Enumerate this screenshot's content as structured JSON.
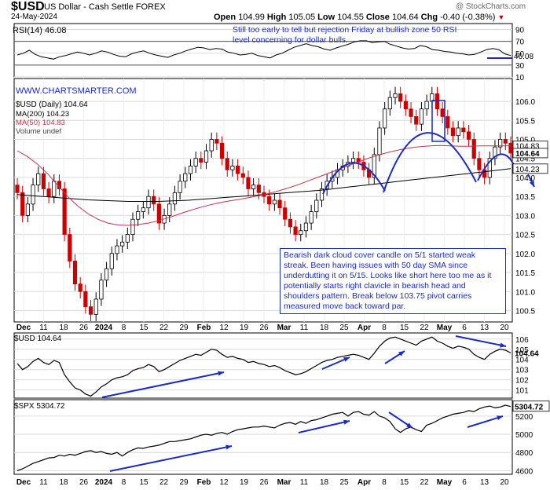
{
  "header": {
    "symbol": "$USD",
    "name": "US Dollar - Cash Settle FOREX",
    "date": "24-May-2024",
    "watermark": "@ StockCharts.com",
    "ohlc": {
      "open_label": "Open",
      "open": "104.99",
      "high_label": "High",
      "high": "105.05",
      "low_label": "Low",
      "low": "104.55",
      "close_label": "Close",
      "close": "104.64",
      "chg_label": "Chg",
      "chg": "-0.40 (-0.38%)"
    }
  },
  "site": "WWW.CHARTSMARTER.COM",
  "annotations": {
    "rsi_note": "Still too early to tell but rejection Friday at bullish zone 50 RSI level concerning for dollar bulls.",
    "main_note": "Bearish dark cloud cover candle on 5/1 started weak streak. Been having issues with 50 day SMA  since underdutting it on 5/15. Looks like short here too me as it potentially starts right clavicle in bearish head and shoulders pattern. Break below 103.75 pivot carries measured move back toward par."
  },
  "colors": {
    "up_candle": "#000000",
    "down_candle": "#cc0000",
    "ma50": "#c8324a",
    "ma200": "#000000",
    "annotation": "#1b2bc2",
    "grid": "#d9d9d9"
  },
  "chart_data": [
    {
      "type": "line",
      "panel": "rsi",
      "title": "RSI(14) 46.08",
      "ylim": [
        10,
        100
      ],
      "yticks": [
        10,
        30,
        50,
        70,
        90
      ],
      "reference_lines": [
        30,
        70
      ],
      "last_value_label": "46.08",
      "series": [
        {
          "name": "RSI(14)",
          "values": [
            47,
            50,
            55,
            48,
            44,
            42,
            40,
            44,
            46,
            49,
            52,
            50,
            47,
            50,
            54,
            52,
            48,
            45,
            44,
            49,
            52,
            54,
            50,
            47,
            45,
            43,
            47,
            50,
            54,
            57,
            60,
            59,
            56,
            58,
            57,
            52,
            50,
            47,
            48,
            50,
            46,
            44,
            42,
            47,
            50,
            55,
            60,
            63,
            66,
            63,
            61,
            57,
            55,
            59,
            62,
            65,
            69,
            71,
            71,
            68,
            69,
            70,
            65,
            62,
            59,
            57,
            58,
            63,
            61,
            56,
            55,
            53,
            52,
            50,
            49,
            47,
            48,
            52,
            56,
            58,
            56,
            49,
            46
          ]
        }
      ]
    },
    {
      "type": "candlestick",
      "panel": "price",
      "title": "$USD (Daily) 104.64",
      "ylim": [
        100.2,
        106.6
      ],
      "yticks": [
        100.5,
        101.0,
        101.5,
        102.0,
        102.5,
        103.0,
        103.5,
        104.0,
        104.5,
        105.0,
        105.5,
        106.0
      ],
      "x_tick_labels": [
        "Dec",
        "11",
        "18",
        "26",
        "2024",
        "8",
        "15",
        "22",
        "29",
        "Feb",
        "12",
        "19",
        "26",
        "Mar",
        "11",
        "18",
        "25",
        "Apr",
        "8",
        "15",
        "22",
        "May",
        "6",
        "13",
        "20"
      ],
      "legend": [
        "MA(200) 104.23",
        "MA(50) 104.83",
        "Volume undef"
      ],
      "last_value_labels": [
        "104.83",
        "104.64",
        "104.23"
      ],
      "closes": [
        103.6,
        103.0,
        103.3,
        103.8,
        104.1,
        103.7,
        103.5,
        103.9,
        103.7,
        102.5,
        101.8,
        101.2,
        101.0,
        100.6,
        100.4,
        100.8,
        101.3,
        101.6,
        102.0,
        102.2,
        102.3,
        102.5,
        102.9,
        103.1,
        103.2,
        103.5,
        103.3,
        102.8,
        103.0,
        103.3,
        103.6,
        103.9,
        104.1,
        104.3,
        104.5,
        104.4,
        104.7,
        105.0,
        104.9,
        104.5,
        104.2,
        104.3,
        104.1,
        104.0,
        103.7,
        103.8,
        103.6,
        103.5,
        103.3,
        103.4,
        103.2,
        102.9,
        102.7,
        102.5,
        102.6,
        102.8,
        103.1,
        103.4,
        103.7,
        103.9,
        104.0,
        104.2,
        104.3,
        104.4,
        104.5,
        104.4,
        104.2,
        104.0,
        104.6,
        105.3,
        105.8,
        106.1,
        106.2,
        106.0,
        105.8,
        105.6,
        105.4,
        105.8,
        106.0,
        106.2,
        105.8,
        105.6,
        105.3,
        105.1,
        105.3,
        105.2,
        105.0,
        104.5,
        104.2,
        104.0,
        104.5,
        104.8,
        105.0,
        104.9,
        104.64
      ],
      "series": [
        {
          "name": "MA(200)",
          "values": [
            103.55,
            103.53,
            103.51,
            103.49,
            103.47,
            103.45,
            103.43,
            103.41,
            103.4,
            103.39,
            103.38,
            103.37,
            103.37,
            103.37,
            103.37,
            103.38,
            103.39,
            103.4,
            103.42,
            103.44,
            103.46,
            103.48,
            103.5,
            103.52,
            103.54,
            103.56,
            103.58,
            103.6,
            103.62,
            103.64,
            103.66,
            103.69,
            103.72,
            103.75,
            103.78,
            103.81,
            103.84,
            103.87,
            103.9,
            103.93,
            103.96,
            103.99,
            104.02,
            104.05,
            104.08,
            104.11,
            104.14,
            104.17,
            104.2,
            104.23
          ]
        },
        {
          "name": "MA(50)",
          "values": [
            104.7,
            104.55,
            104.35,
            104.1,
            103.8,
            103.5,
            103.25,
            103.05,
            102.9,
            102.8,
            102.75,
            102.74,
            102.76,
            102.8,
            102.86,
            102.94,
            103.03,
            103.12,
            103.2,
            103.27,
            103.33,
            103.38,
            103.42,
            103.47,
            103.52,
            103.58,
            103.65,
            103.73,
            103.82,
            103.92,
            104.02,
            104.12,
            104.22,
            104.32,
            104.42,
            104.52,
            104.6,
            104.67,
            104.73,
            104.78,
            104.81,
            104.83,
            104.84,
            104.83,
            104.82,
            104.82,
            104.83,
            104.83,
            104.83,
            104.83
          ]
        }
      ]
    },
    {
      "type": "line",
      "panel": "usd",
      "title": "$USD 104.64",
      "ylim": [
        100.2,
        106.6
      ],
      "yticks": [
        101,
        102,
        103,
        104,
        105,
        106
      ],
      "last_value_label": "104.64"
    },
    {
      "type": "line",
      "panel": "spx",
      "title": "$SPX 5304.72",
      "ylim": [
        4560,
        5380
      ],
      "yticks": [
        4600,
        4800,
        5000,
        5200
      ],
      "last_value_label": "5304.72",
      "series": [
        {
          "name": "$SPX",
          "values": [
            4600,
            4620,
            4650,
            4680,
            4700,
            4720,
            4740,
            4745,
            4770,
            4760,
            4780,
            4770,
            4790,
            4810,
            4820,
            4800,
            4810,
            4790,
            4780,
            4800,
            4760,
            4800,
            4830,
            4850,
            4845,
            4860,
            4870,
            4880,
            4900,
            4920,
            4920,
            4930,
            4940,
            4950,
            4970,
            4990,
            5000,
            4990,
            5010,
            5020,
            5000,
            5030,
            5050,
            5060,
            5070,
            5080,
            5080,
            5090,
            5080,
            5070,
            5100,
            5120,
            5130,
            5110,
            5140,
            5120,
            5150,
            5160,
            5180,
            5200,
            5220,
            5230,
            5240,
            5200,
            5240,
            5250,
            5220,
            5210,
            5250,
            5200,
            5180,
            5140,
            5060,
            5020,
            5060,
            5080,
            5050,
            5030,
            5100,
            5120,
            5150,
            5180,
            5200,
            5220,
            5230,
            5240,
            5260,
            5250,
            5280,
            5300,
            5310,
            5290,
            5300,
            5320,
            5304.72
          ]
        }
      ]
    }
  ]
}
